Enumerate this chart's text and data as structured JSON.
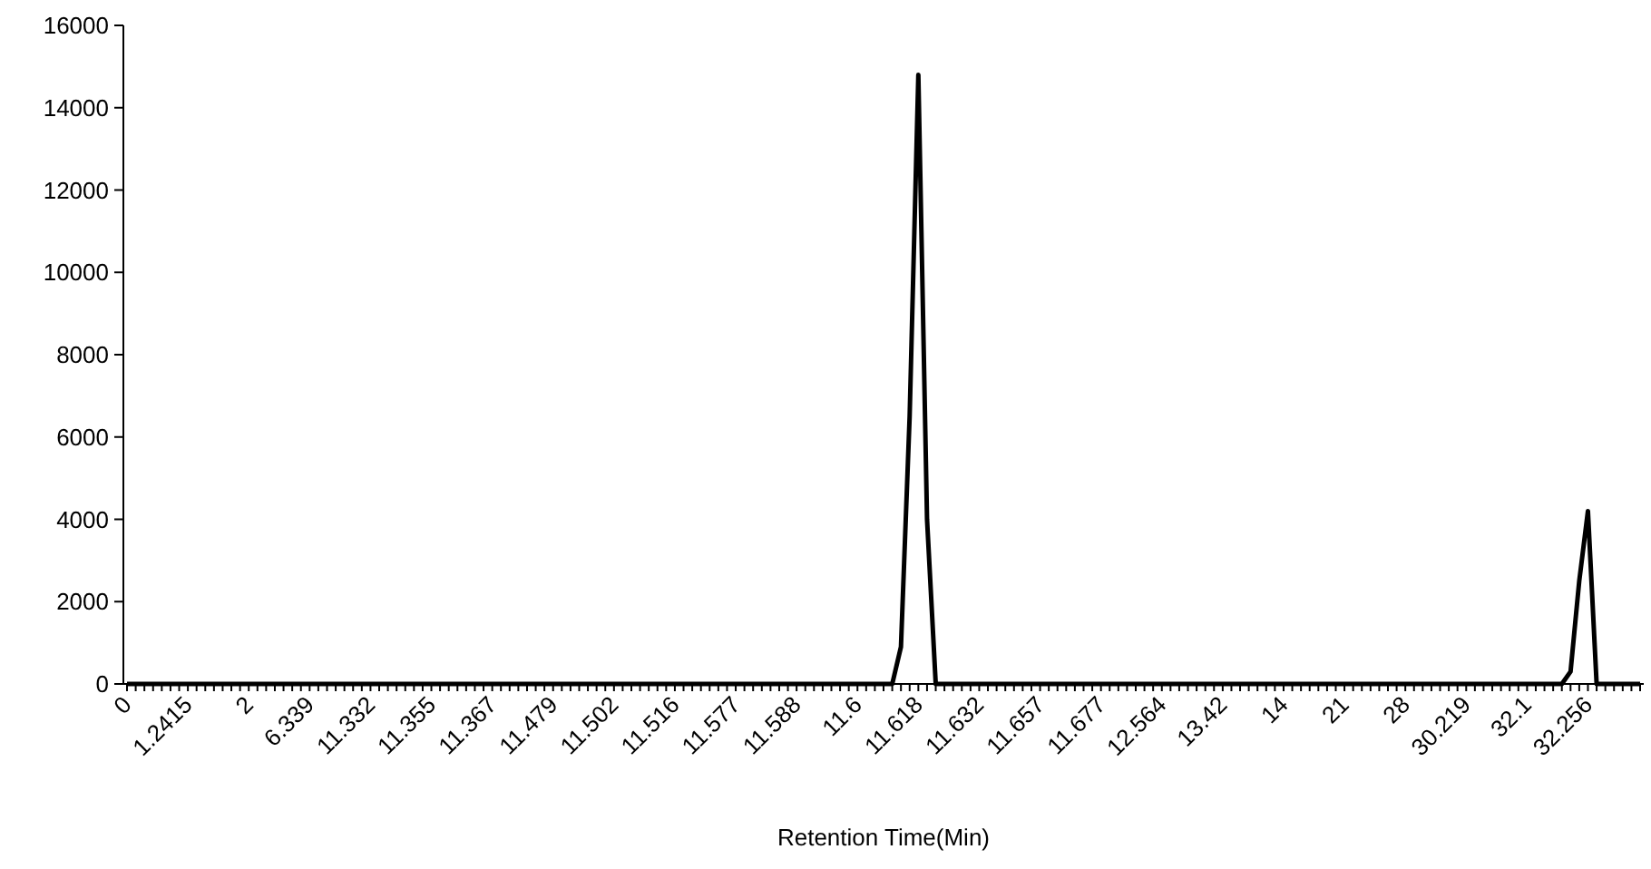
{
  "chart_data": {
    "type": "line",
    "xlabel": "Retention Time(Min)",
    "categories": [
      "0",
      null,
      null,
      null,
      null,
      null,
      null,
      "1.2415",
      null,
      null,
      null,
      null,
      null,
      null,
      "2",
      null,
      null,
      null,
      null,
      null,
      null,
      "6.339",
      null,
      null,
      null,
      null,
      null,
      null,
      "11.332",
      null,
      null,
      null,
      null,
      null,
      null,
      "11.355",
      null,
      null,
      null,
      null,
      null,
      null,
      "11.367",
      null,
      null,
      null,
      null,
      null,
      null,
      "11.479",
      null,
      null,
      null,
      null,
      null,
      null,
      "11.502",
      null,
      null,
      null,
      null,
      null,
      null,
      "11.516",
      null,
      null,
      null,
      null,
      null,
      null,
      "11.577",
      null,
      null,
      null,
      null,
      null,
      null,
      "11.588",
      null,
      null,
      null,
      null,
      null,
      null,
      "11.6",
      null,
      null,
      null,
      null,
      null,
      null,
      "11.618",
      null,
      null,
      null,
      null,
      null,
      null,
      "11.632",
      null,
      null,
      null,
      null,
      null,
      null,
      "11.657",
      null,
      null,
      null,
      null,
      null,
      null,
      "11.677",
      null,
      null,
      null,
      null,
      null,
      null,
      "12.564",
      null,
      null,
      null,
      null,
      null,
      null,
      "13.42",
      null,
      null,
      null,
      null,
      null,
      null,
      "14",
      null,
      null,
      null,
      null,
      null,
      null,
      "21",
      null,
      null,
      null,
      null,
      null,
      null,
      "28",
      null,
      null,
      null,
      null,
      null,
      null,
      "30.219",
      null,
      null,
      null,
      null,
      null,
      null,
      "32.1",
      null,
      null,
      null,
      null,
      null,
      null,
      "32.256",
      null,
      null,
      null,
      null,
      null,
      null
    ],
    "series": [
      {
        "color": "#000000",
        "values": [
          0,
          0,
          0,
          0,
          0,
          0,
          0,
          0,
          0,
          0,
          0,
          0,
          0,
          0,
          0,
          0,
          0,
          0,
          0,
          0,
          0,
          0,
          0,
          0,
          0,
          0,
          0,
          0,
          0,
          0,
          0,
          0,
          0,
          0,
          0,
          0,
          0,
          0,
          0,
          0,
          0,
          0,
          0,
          0,
          0,
          0,
          0,
          0,
          0,
          0,
          0,
          0,
          0,
          0,
          0,
          0,
          0,
          0,
          0,
          0,
          0,
          0,
          0,
          0,
          0,
          0,
          0,
          0,
          0,
          0,
          0,
          0,
          0,
          0,
          0,
          0,
          0,
          0,
          0,
          0,
          0,
          0,
          0,
          0,
          0,
          0,
          0,
          0,
          0,
          900,
          6500,
          14800,
          4000,
          0,
          0,
          0,
          0,
          0,
          0,
          0,
          0,
          0,
          0,
          0,
          0,
          0,
          0,
          0,
          0,
          0,
          0,
          0,
          0,
          0,
          0,
          0,
          0,
          0,
          0,
          0,
          0,
          0,
          0,
          0,
          0,
          0,
          0,
          0,
          0,
          0,
          0,
          0,
          0,
          0,
          0,
          0,
          0,
          0,
          0,
          0,
          0,
          0,
          0,
          0,
          0,
          0,
          0,
          0,
          0,
          0,
          0,
          0,
          0,
          0,
          0,
          0,
          0,
          0,
          0,
          0,
          0,
          0,
          0,
          0,
          0,
          0,
          300,
          2500,
          4200,
          0,
          0,
          0,
          0,
          0,
          0
        ]
      }
    ],
    "ylim": [
      0,
      16000
    ],
    "yticks": [
      0,
      2000,
      4000,
      6000,
      8000,
      10000,
      12000,
      14000,
      16000
    ],
    "grid": false
  }
}
